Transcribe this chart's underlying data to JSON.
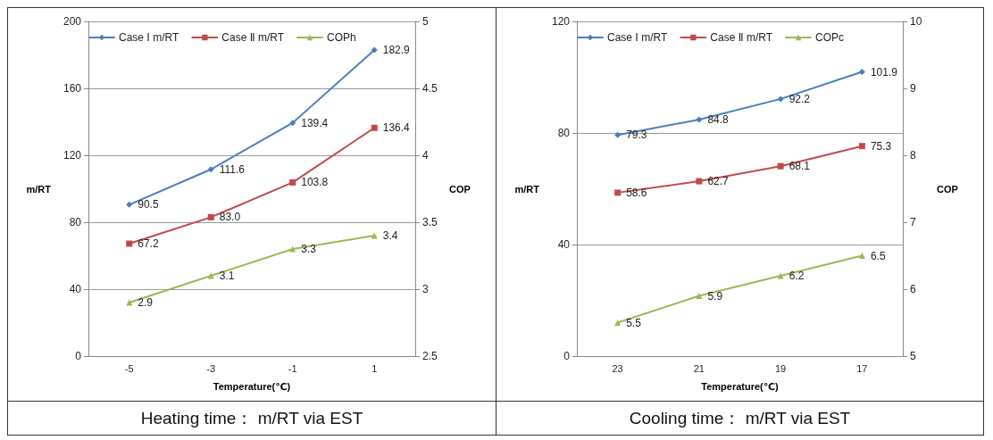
{
  "chart_data": [
    {
      "type": "line",
      "title": "Heating time： m/RT via EST",
      "xlabel": "Temperature(℃)",
      "ylabel": "m/RT",
      "y2label": "COP",
      "categories": [
        "-5",
        "-3",
        "-1",
        "1"
      ],
      "series": [
        {
          "name": "Case Ⅰ m/RT",
          "color": "#4a7ebb",
          "marker": "diamond",
          "values": [
            90.5,
            111.6,
            139.4,
            182.9
          ]
        },
        {
          "name": "Case Ⅱ m/RT",
          "color": "#be4b48",
          "marker": "square",
          "values": [
            67.2,
            83.0,
            103.8,
            136.4
          ],
          "value_labels": [
            "67.2",
            "83.0",
            "103.8",
            "136.4"
          ]
        },
        {
          "name": "COPh",
          "color": "#98b954",
          "marker": "triangle",
          "axis": "y2",
          "values": [
            2.9,
            3.1,
            3.3,
            3.4
          ]
        }
      ],
      "ylim": [
        0,
        200
      ],
      "yticks": [
        0,
        40,
        80,
        120,
        160,
        200
      ],
      "y2lim": [
        2.5,
        5
      ],
      "y2ticks": [
        2.5,
        3,
        3.5,
        4,
        4.5,
        5
      ],
      "grid": "y",
      "legend": "top left",
      "data_labels": true
    },
    {
      "type": "line",
      "title": "Cooling time： m/RT via EST",
      "xlabel": "Temperature(℃)",
      "ylabel": "m/RT",
      "y2label": "COP",
      "categories": [
        "23",
        "21",
        "19",
        "17"
      ],
      "series": [
        {
          "name": "Case Ⅰ m/RT",
          "color": "#4a7ebb",
          "marker": "diamond",
          "values": [
            79.3,
            84.8,
            92.2,
            101.9
          ]
        },
        {
          "name": "Case Ⅱ m/RT",
          "color": "#be4b48",
          "marker": "square",
          "values": [
            58.6,
            62.7,
            68.1,
            75.3
          ]
        },
        {
          "name": "COPc",
          "color": "#98b954",
          "marker": "triangle",
          "axis": "y2",
          "values": [
            5.5,
            5.9,
            6.2,
            6.5
          ]
        }
      ],
      "ylim": [
        0,
        120
      ],
      "yticks": [
        0,
        40,
        80,
        120
      ],
      "y2lim": [
        5,
        10
      ],
      "y2ticks": [
        5,
        6,
        7,
        8,
        9,
        10
      ],
      "grid": "y",
      "legend": "top left",
      "data_labels": true
    }
  ]
}
